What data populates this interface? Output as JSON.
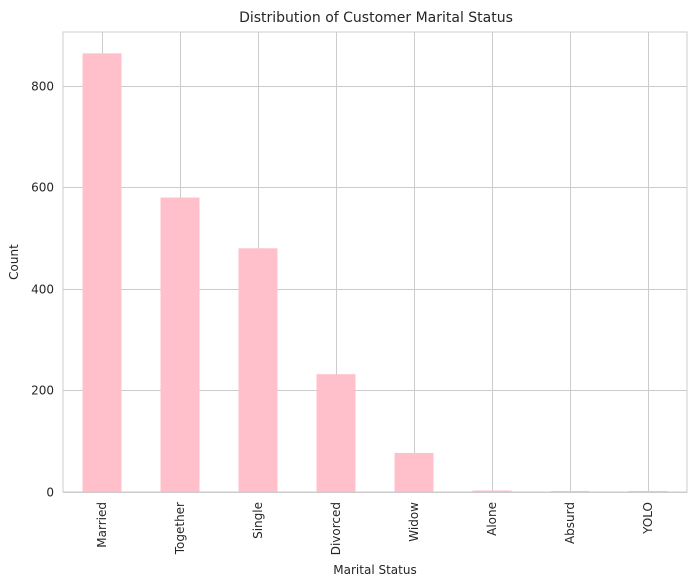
{
  "chart_data": {
    "type": "bar",
    "title": "Distribution of Customer Marital Status",
    "xlabel": "Marital Status",
    "ylabel": "Count",
    "categories": [
      "Married",
      "Together",
      "Single",
      "Divorced",
      "Widow",
      "Alone",
      "Absurd",
      "YOLO"
    ],
    "values": [
      864,
      580,
      480,
      232,
      77,
      3,
      2,
      2
    ],
    "ylim": [
      0,
      906
    ],
    "yticks": [
      0,
      200,
      400,
      600,
      800
    ],
    "grid": true,
    "bar_color": "#ffc0cb",
    "grid_color": "#cccccc",
    "text_color": "#262626"
  }
}
